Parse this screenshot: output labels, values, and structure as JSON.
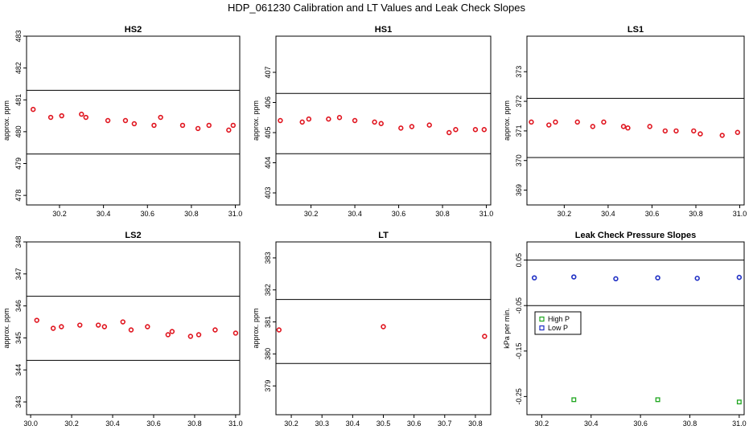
{
  "title": "HDP_061230  Calibration and LT Values and Leak Check Slopes",
  "colors": {
    "point": "#e0141e",
    "high_p": "#1fa61f",
    "low_p": "#1f2fc4",
    "axis": "#000000"
  },
  "chart_data": [
    {
      "id": "hs2",
      "type": "scatter",
      "title": "HS2",
      "ylabel": "approx. ppm",
      "xlim": [
        30.05,
        31.02
      ],
      "ylim": [
        477.7,
        483.0
      ],
      "xticks": [
        30.2,
        30.4,
        30.6,
        30.8,
        31.0
      ],
      "xtick_labels": [
        "30.2",
        "30.4",
        "30.6",
        "30.8",
        "31.0"
      ],
      "yticks": [
        478,
        479,
        480,
        481,
        482,
        483
      ],
      "ytick_labels": [
        "478",
        "479",
        "480",
        "481",
        "482",
        "483"
      ],
      "hlines": [
        481.3,
        479.3
      ],
      "series": [
        {
          "color": "#e0141e",
          "x": [
            30.08,
            30.16,
            30.21,
            30.3,
            30.32,
            30.42,
            30.5,
            30.54,
            30.63,
            30.66,
            30.76,
            30.83,
            30.88,
            30.97,
            30.99
          ],
          "y": [
            480.7,
            480.45,
            480.5,
            480.55,
            480.45,
            480.35,
            480.35,
            480.25,
            480.2,
            480.45,
            480.2,
            480.1,
            480.2,
            480.05,
            480.2
          ]
        }
      ]
    },
    {
      "id": "hs1",
      "type": "scatter",
      "title": "HS1",
      "ylabel": "approx. ppm",
      "xlim": [
        30.04,
        31.02
      ],
      "ylim": [
        402.6,
        408.2
      ],
      "xticks": [
        30.2,
        30.4,
        30.6,
        30.8,
        31.0
      ],
      "xtick_labels": [
        "30.2",
        "30.4",
        "30.6",
        "30.8",
        "31.0"
      ],
      "yticks": [
        403,
        404,
        405,
        406,
        407
      ],
      "ytick_labels": [
        "403",
        "404",
        "405",
        "406",
        "407"
      ],
      "hlines": [
        406.3,
        404.3
      ],
      "series": [
        {
          "color": "#e0141e",
          "x": [
            30.06,
            30.16,
            30.19,
            30.28,
            30.33,
            30.4,
            30.49,
            30.52,
            30.61,
            30.66,
            30.74,
            30.83,
            30.86,
            30.95,
            30.99
          ],
          "y": [
            405.4,
            405.35,
            405.45,
            405.45,
            405.5,
            405.4,
            405.35,
            405.3,
            405.15,
            405.2,
            405.25,
            405.0,
            405.1,
            405.1,
            405.1
          ]
        }
      ]
    },
    {
      "id": "ls1",
      "type": "scatter",
      "title": "LS1",
      "ylabel": "approx. ppm",
      "xlim": [
        30.03,
        31.02
      ],
      "ylim": [
        368.5,
        374.2
      ],
      "xticks": [
        30.2,
        30.4,
        30.6,
        30.8,
        31.0
      ],
      "xtick_labels": [
        "30.2",
        "30.4",
        "30.6",
        "30.8",
        "31.0"
      ],
      "yticks": [
        369,
        370,
        371,
        372,
        373
      ],
      "ytick_labels": [
        "369",
        "370",
        "371",
        "372",
        "373"
      ],
      "hlines": [
        372.1,
        370.1
      ],
      "series": [
        {
          "color": "#e0141e",
          "x": [
            30.05,
            30.13,
            30.16,
            30.26,
            30.33,
            30.38,
            30.47,
            30.49,
            30.59,
            30.66,
            30.71,
            30.79,
            30.82,
            30.92,
            30.99
          ],
          "y": [
            371.3,
            371.2,
            371.3,
            371.3,
            371.15,
            371.3,
            371.15,
            371.1,
            371.15,
            371.0,
            371.0,
            371.0,
            370.9,
            370.85,
            370.95
          ]
        }
      ]
    },
    {
      "id": "ls2",
      "type": "scatter",
      "title": "LS2",
      "ylabel": "approx. ppm",
      "xlim": [
        29.98,
        31.02
      ],
      "ylim": [
        342.6,
        348.0
      ],
      "xticks": [
        30.0,
        30.2,
        30.4,
        30.6,
        30.8,
        31.0
      ],
      "xtick_labels": [
        "30.0",
        "30.2",
        "30.4",
        "30.6",
        "30.8",
        "31.0"
      ],
      "yticks": [
        343,
        344,
        345,
        346,
        347,
        348
      ],
      "ytick_labels": [
        "343",
        "344",
        "345",
        "346",
        "347",
        "348"
      ],
      "hlines": [
        346.3,
        344.3
      ],
      "series": [
        {
          "color": "#e0141e",
          "x": [
            30.03,
            30.11,
            30.15,
            30.24,
            30.33,
            30.36,
            30.45,
            30.49,
            30.57,
            30.67,
            30.69,
            30.78,
            30.82,
            30.9,
            31.0
          ],
          "y": [
            345.55,
            345.3,
            345.35,
            345.4,
            345.4,
            345.35,
            345.5,
            345.25,
            345.35,
            345.1,
            345.2,
            345.05,
            345.1,
            345.25,
            345.15
          ]
        }
      ]
    },
    {
      "id": "lt",
      "type": "scatter",
      "title": "LT",
      "ylabel": "approx. ppm",
      "xlim": [
        30.15,
        30.85
      ],
      "ylim": [
        378.1,
        383.5
      ],
      "xticks": [
        30.2,
        30.3,
        30.4,
        30.5,
        30.6,
        30.7,
        30.8
      ],
      "xtick_labels": [
        "30.2",
        "30.3",
        "30.4",
        "30.5",
        "30.6",
        "30.7",
        "30.8"
      ],
      "yticks": [
        379,
        380,
        381,
        382,
        383
      ],
      "ytick_labels": [
        "379",
        "380",
        "381",
        "382",
        "383"
      ],
      "hlines": [
        381.7,
        379.7
      ],
      "series": [
        {
          "color": "#e0141e",
          "x": [
            30.16,
            30.5,
            30.83
          ],
          "y": [
            380.75,
            380.85,
            380.55
          ]
        }
      ]
    },
    {
      "id": "leak",
      "type": "scatter",
      "title": "Leak Check Pressure Slopes",
      "ylabel": "kPa per min.",
      "xlim": [
        30.14,
        31.02
      ],
      "ylim": [
        -0.29,
        0.09
      ],
      "xticks": [
        30.2,
        30.4,
        30.6,
        30.8,
        31.0
      ],
      "xtick_labels": [
        "30.2",
        "30.4",
        "30.6",
        "30.8",
        "31.0"
      ],
      "yticks": [
        0.05,
        -0.05,
        -0.15,
        -0.25
      ],
      "ytick_labels": [
        "0.05",
        "-0.05",
        "-0.15",
        "-0.25"
      ],
      "hlines": [
        0.05,
        -0.05
      ],
      "legend": {
        "placement": "left",
        "entries": [
          "High P",
          "Low P"
        ]
      },
      "series": [
        {
          "name": "High P",
          "color": "#1fa61f",
          "x": [
            30.33,
            30.67,
            31.0
          ],
          "y": [
            -0.257,
            -0.257,
            -0.262
          ]
        },
        {
          "name": "Low P",
          "color": "#1f2fc4",
          "x": [
            30.17,
            30.33,
            30.5,
            30.67,
            30.83,
            31.0
          ],
          "y": [
            0.011,
            0.013,
            0.009,
            0.011,
            0.01,
            0.012
          ]
        }
      ]
    }
  ]
}
